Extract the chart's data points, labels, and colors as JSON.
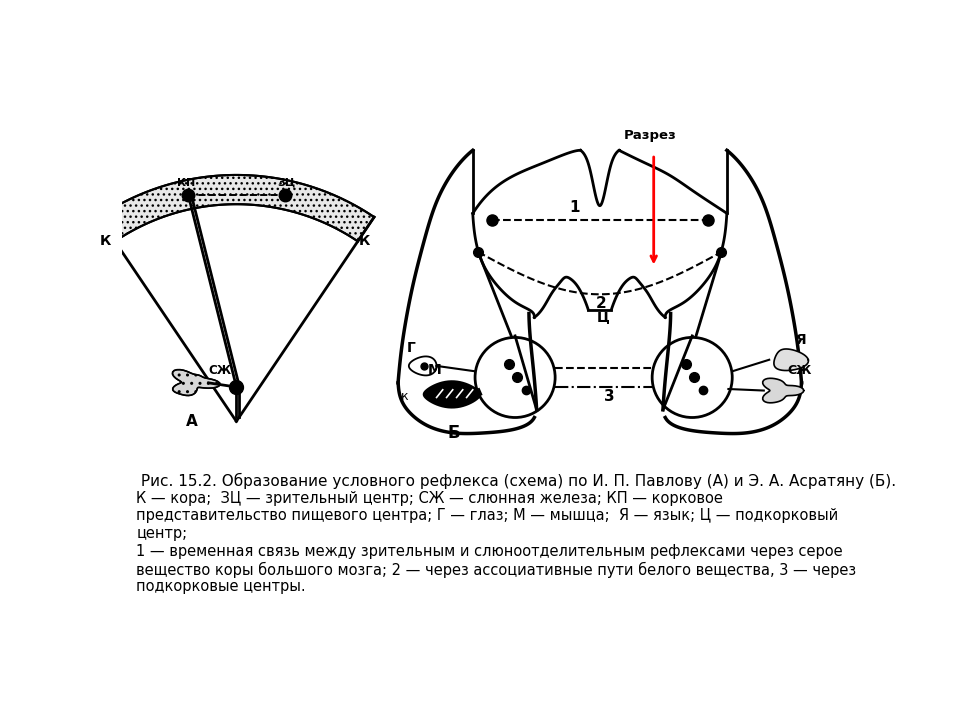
{
  "caption_line1": " Рис. 15.2. Образование условного рефлекса (схема) по И. П. Павлову (А) и Э. А. Асратяну (Б).",
  "caption_line2": "К — кора;  ЗЦ — зрительный центр; СЖ — слюнная железа; КП — корковое",
  "caption_line3": "представительство пищевого центра; Г — глаз; М — мышца;  Я — язык; Ц — подкорковый",
  "caption_line4": "центр;",
  "caption_line5": "1 — временная связь между зрительным и слюноотделительным рефлексами через серое",
  "caption_line6": "вещество коры большого мозга; 2 — через ассоциативные пути белого вещества, 3 — через",
  "caption_line7": "подкорковые центры.",
  "bg_color": "#ffffff"
}
